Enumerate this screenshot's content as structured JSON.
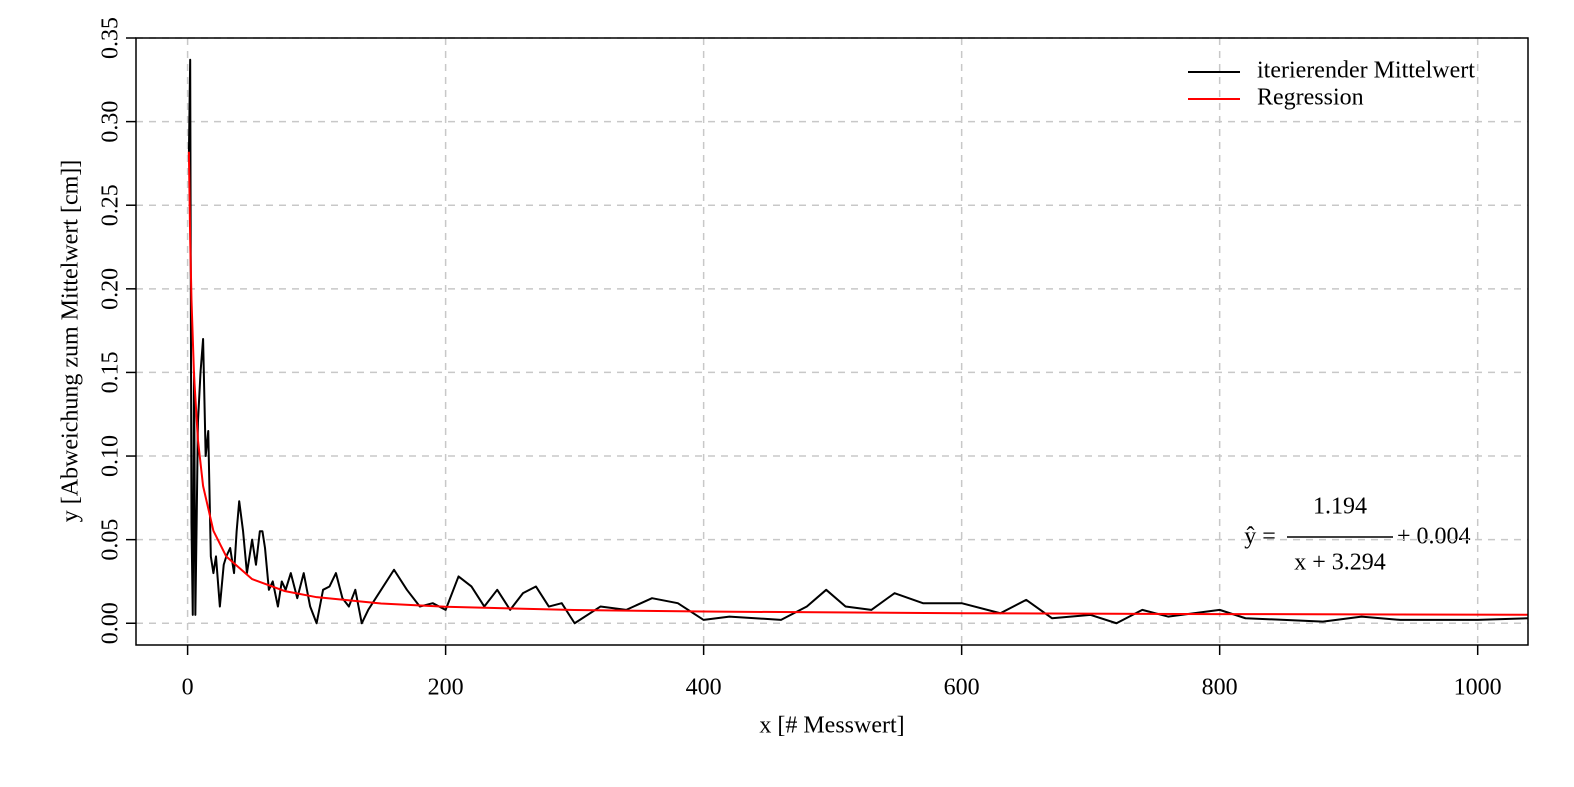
{
  "chart_data": {
    "type": "line",
    "xlabel": "x [# Messwert]",
    "ylabel": "y [Abweichung zum Mittelwert [cm]]",
    "xlim": [
      -40,
      1039
    ],
    "ylim": [
      -0.013,
      0.35
    ],
    "xticks": [
      0,
      200,
      400,
      600,
      800,
      1000
    ],
    "yticks": [
      {
        "value": 0,
        "label": "0.00"
      },
      {
        "value": 0.05,
        "label": "0.05"
      },
      {
        "value": 0.1,
        "label": "0.10"
      },
      {
        "value": 0.15,
        "label": "0.15"
      },
      {
        "value": 0.2,
        "label": "0.20"
      },
      {
        "value": 0.25,
        "label": "0.25"
      },
      {
        "value": 0.3,
        "label": "0.30"
      },
      {
        "value": 0.35,
        "label": "0.35"
      }
    ],
    "grid": true,
    "legend": "top-right",
    "series": [
      {
        "name": "iterierender Mittelwert",
        "color": "#000000",
        "x": [
          1,
          2,
          3,
          4,
          5,
          6,
          7,
          8,
          10,
          12,
          14,
          16,
          18,
          20,
          22,
          25,
          28,
          30,
          33,
          36,
          38,
          40,
          43,
          46,
          50,
          53,
          56,
          58,
          60,
          63,
          66,
          70,
          73,
          76,
          80,
          85,
          90,
          95,
          100,
          105,
          110,
          115,
          120,
          125,
          130,
          135,
          140,
          150,
          160,
          170,
          180,
          190,
          200,
          210,
          220,
          230,
          240,
          250,
          260,
          270,
          280,
          290,
          300,
          320,
          340,
          360,
          380,
          400,
          420,
          440,
          460,
          480,
          495,
          510,
          530,
          548,
          570,
          600,
          630,
          650,
          670,
          700,
          720,
          740,
          760,
          780,
          800,
          820,
          850,
          880,
          910,
          940,
          970,
          1000,
          1039
        ],
        "values": [
          0.28,
          0.337,
          0.06,
          0.005,
          0.15,
          0.005,
          0.06,
          0.12,
          0.15,
          0.17,
          0.1,
          0.115,
          0.04,
          0.03,
          0.04,
          0.01,
          0.035,
          0.04,
          0.045,
          0.03,
          0.055,
          0.073,
          0.055,
          0.03,
          0.05,
          0.035,
          0.055,
          0.055,
          0.045,
          0.02,
          0.025,
          0.01,
          0.025,
          0.02,
          0.03,
          0.015,
          0.03,
          0.01,
          0.0,
          0.02,
          0.022,
          0.03,
          0.015,
          0.01,
          0.02,
          0.0,
          0.008,
          0.02,
          0.032,
          0.02,
          0.01,
          0.012,
          0.008,
          0.028,
          0.022,
          0.01,
          0.02,
          0.008,
          0.018,
          0.022,
          0.01,
          0.012,
          0.0,
          0.01,
          0.008,
          0.015,
          0.012,
          0.002,
          0.004,
          0.003,
          0.002,
          0.01,
          0.02,
          0.01,
          0.008,
          0.018,
          0.012,
          0.012,
          0.006,
          0.014,
          0.003,
          0.005,
          0.0,
          0.008,
          0.004,
          0.006,
          0.008,
          0.003,
          0.002,
          0.001,
          0.004,
          0.002,
          0.002,
          0.002,
          0.003
        ]
      },
      {
        "name": "Regression",
        "color": "#ff0000",
        "x": [
          1,
          2,
          3,
          5,
          8,
          12,
          20,
          30,
          50,
          75,
          100,
          150,
          200,
          300,
          400,
          600,
          800,
          1039
        ],
        "values": [
          0.282,
          0.2295,
          0.1937,
          0.148,
          0.1097,
          0.0821,
          0.0553,
          0.0399,
          0.0264,
          0.0193,
          0.0156,
          0.0118,
          0.0099,
          0.0079,
          0.007,
          0.006,
          0.0055,
          0.0051
        ]
      }
    ],
    "annotation": {
      "lhs": "ŷ =",
      "numerator": "1.194",
      "denominator": "x + 3.294",
      "rest": "+ 0.004"
    }
  }
}
